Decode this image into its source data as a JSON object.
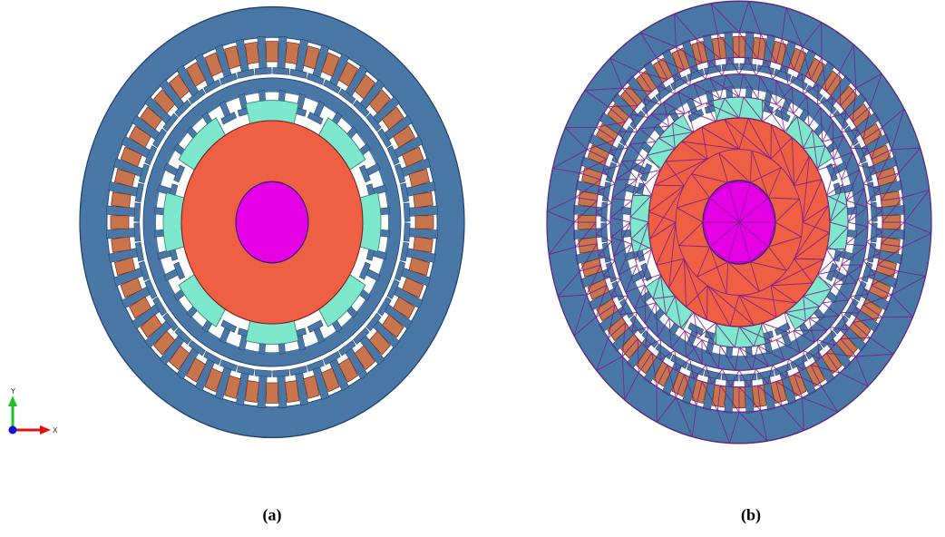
{
  "panels": [
    {
      "id": "a",
      "caption": "(a)",
      "mesh": false,
      "stator_slots": 48,
      "rotor_teeth": 36,
      "magnets": 8
    },
    {
      "id": "b",
      "caption": "(b)",
      "mesh": true,
      "stator_slots": 48,
      "rotor_teeth": 36,
      "magnets": 8
    }
  ],
  "axes": {
    "x_label": "X",
    "y_label": "Y"
  },
  "colors": {
    "stator_yoke": "#4a78a6",
    "stator_border": "#1f3f6e",
    "winding": "#c8744d",
    "winding_border": "#7a2f1b",
    "air_gap": "#ffffff",
    "magnet": "#7de8cc",
    "rotor_core": "#ef5f44",
    "shaft": "#e600e6",
    "shaft_border": "#3a1f6e",
    "mesh_line": "#7a1a8e",
    "axis_x": "#e01010",
    "axis_y": "#20c020",
    "axis_origin": "#1010d0"
  }
}
